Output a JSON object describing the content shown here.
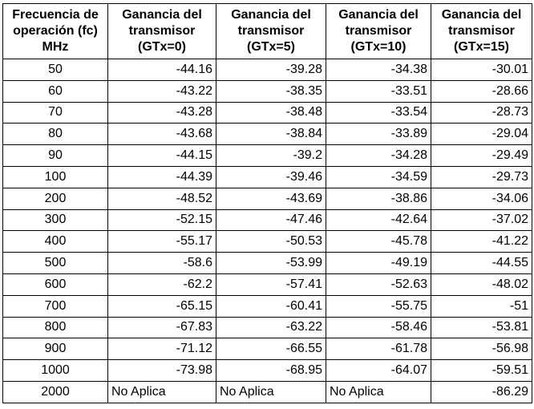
{
  "headers": [
    "Frecuencia de operación (fc) MHz",
    "Ganancia del transmisor (GTx=0)",
    "Ganancia del transmisor (GTx=5)",
    "Ganancia del transmisor (GTx=10)",
    "Ganancia del transmisor (GTx=15)"
  ],
  "rows": [
    [
      "50",
      "-44.16",
      "-39.28",
      "-34.38",
      "-30.01"
    ],
    [
      "60",
      "-43.22",
      "-38.35",
      "-33.51",
      "-28.66"
    ],
    [
      "70",
      "-43.28",
      "-38.48",
      "-33.54",
      "-28.73"
    ],
    [
      "80",
      "-43.68",
      "-38.84",
      "-33.89",
      "-29.04"
    ],
    [
      "90",
      "-44.15",
      "-39.2",
      "-34.28",
      "-29.49"
    ],
    [
      "100",
      "-44.39",
      "-39.46",
      "-34.59",
      "-29.73"
    ],
    [
      "200",
      "-48.52",
      "-43.69",
      "-38.86",
      "-34.06"
    ],
    [
      "300",
      "-52.15",
      "-47.46",
      "-42.64",
      "-37.02"
    ],
    [
      "400",
      "-55.17",
      "-50.53",
      "-45.78",
      "-41.22"
    ],
    [
      "500",
      "-58.6",
      "-53.99",
      "-49.19",
      "-44.55"
    ],
    [
      "600",
      "-62.2",
      "-57.41",
      "-52.63",
      "-48.02"
    ],
    [
      "700",
      "-65.15",
      "-60.41",
      "-55.75",
      "-51"
    ],
    [
      "800",
      "-67.83",
      "-63.22",
      "-58.46",
      "-53.81"
    ],
    [
      "900",
      "-71.12",
      "-66.55",
      "-61.78",
      "-56.98"
    ],
    [
      "1000",
      "-73.98",
      "-68.95",
      "-64.07",
      "-59.51"
    ],
    [
      "2000",
      "No Aplica",
      "No Aplica",
      "No Aplica",
      "-86.29"
    ]
  ]
}
